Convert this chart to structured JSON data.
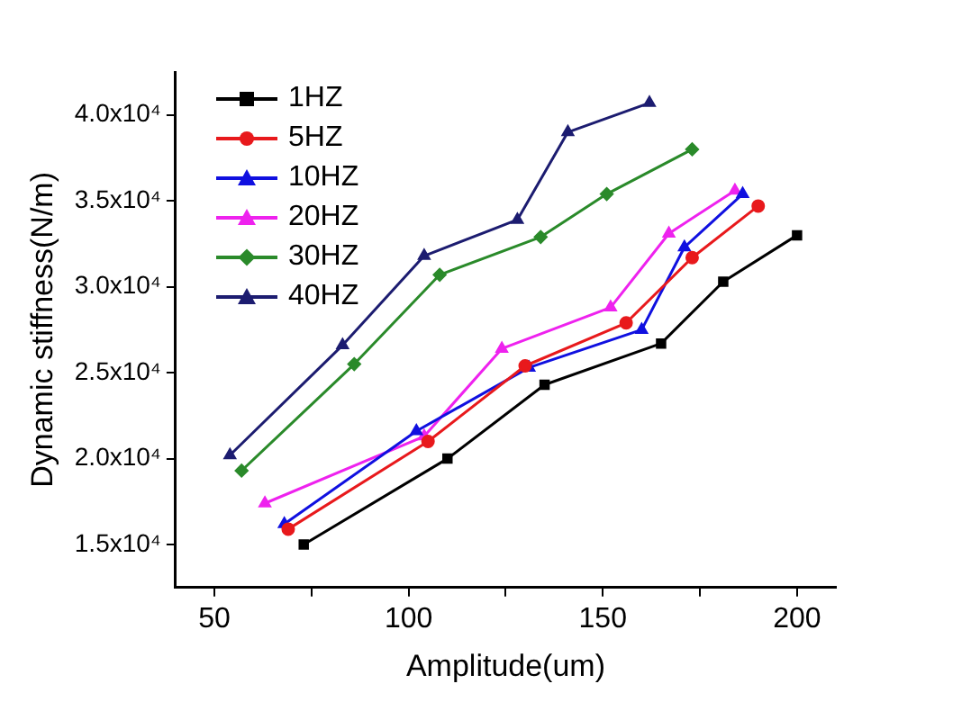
{
  "chart_data": {
    "type": "line",
    "xlabel": "Amplitude(um)",
    "ylabel": "Dynamic stiffness(N/m)",
    "xlim": [
      40,
      210
    ],
    "xticks": [
      50,
      {
        "value": 75,
        "label": null
      },
      100,
      {
        "value": 125,
        "label": null
      },
      150,
      {
        "value": 175,
        "label": null
      },
      200
    ],
    "ylim": [
      12500,
      42500
    ],
    "yticks": [
      {
        "value": 15000,
        "label": "1.5x10⁴"
      },
      {
        "value": 20000,
        "label": "2.0x10⁴"
      },
      {
        "value": 25000,
        "label": "2.5x10⁴"
      },
      {
        "value": 30000,
        "label": "3.0x10⁴"
      },
      {
        "value": 35000,
        "label": "3.5x10⁴"
      },
      {
        "value": 40000,
        "label": "4.0x10⁴"
      }
    ],
    "grid": false,
    "legend": "top left",
    "line_style": "solid",
    "series": [
      {
        "name": "1HZ",
        "color": "#000000",
        "marker": "square",
        "x": [
          73,
          110,
          135,
          165,
          181,
          200
        ],
        "values": [
          15000,
          20000,
          24300,
          26700,
          30300,
          33000
        ]
      },
      {
        "name": "5HZ",
        "color": "#e8191c",
        "marker": "circle",
        "x": [
          69,
          105,
          130,
          156,
          173,
          190
        ],
        "values": [
          15900,
          21000,
          25400,
          27900,
          31700,
          34700
        ]
      },
      {
        "name": "10HZ",
        "color": "#1010e0",
        "marker": "triangle",
        "x": [
          68,
          102,
          131,
          160,
          171,
          186
        ],
        "values": [
          16200,
          21600,
          25300,
          27500,
          32300,
          35400
        ]
      },
      {
        "name": "20HZ",
        "color": "#ee22ee",
        "marker": "triangle",
        "x": [
          63,
          104,
          124,
          152,
          167,
          184
        ],
        "values": [
          17400,
          21300,
          26400,
          28800,
          33100,
          35600
        ]
      },
      {
        "name": "30HZ",
        "color": "#2a8a2a",
        "marker": "diamond",
        "x": [
          57,
          86,
          108,
          134,
          151,
          173
        ],
        "values": [
          19300,
          25500,
          30700,
          32900,
          35400,
          38000
        ]
      },
      {
        "name": "40HZ",
        "color": "#1c1c70",
        "marker": "triangle",
        "x": [
          54,
          83,
          104,
          128,
          141,
          162
        ],
        "values": [
          20200,
          26600,
          31800,
          33900,
          39000,
          40700
        ]
      }
    ]
  }
}
